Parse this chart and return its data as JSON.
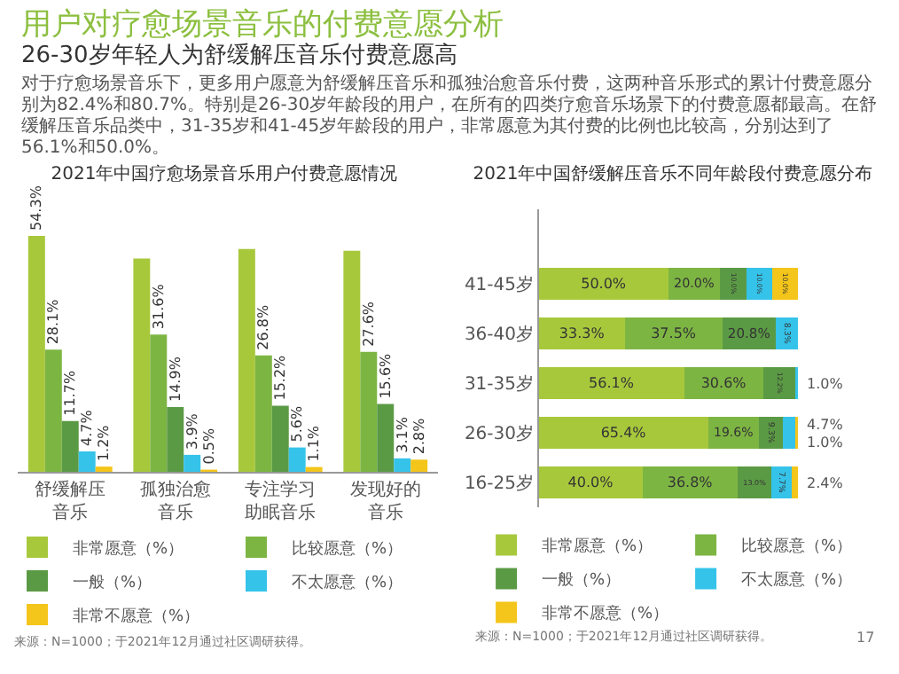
{
  "chart_data": [
    {
      "type": "bar",
      "title": "用户对疗愈场景音乐的付费意愿分析",
      "subtitle": "26-30岁年轻人为舒缓解压音乐付费意愿高",
      "annotations": [
        "对于疗愈场景音乐下，更多用户愿意为舒缓解压音乐和孤独治愈音乐付费，这两种音乐形式的累计付费意愿分别为82.4%和80.7%。特别是26-30岁年龄段的用户，在所有的四类疗愈音乐场景下的付费意愿都最高。在舒缓解压音乐品类中，31-35岁和41-45岁年龄段的用户，非常愿意为其付费的比例也比较高，分别达到了56.1%和50.0%。",
        "2021年中国疗愈场景音乐用户付费意愿情况",
        "来源：N=1000；于2021年12月通过社区调研获得。"
      ],
      "categories": [
        "舒缓解压音乐",
        "孤独治愈音乐",
        "专注学习助眠音乐",
        "发现好的音乐"
      ],
      "legend": "bottom",
      "series": [
        {
          "name": "非常愿意（%）",
          "color": "#a8c83c",
          "values": [
            54.3,
            49.1,
            51.3,
            50.9
          ],
          "value_labels": [
            "54.3%",
            null,
            null,
            null
          ]
        },
        {
          "name": "比较愿意（%）",
          "color": "#7db543",
          "values": [
            28.1,
            31.6,
            26.8,
            27.6
          ],
          "value_labels": [
            "28.1%",
            "31.6%",
            "26.8%",
            "27.6%"
          ]
        },
        {
          "name": "一般（%）",
          "color": "#5b9a45",
          "values": [
            11.7,
            14.9,
            15.2,
            15.6
          ],
          "value_labels": [
            "11.7%",
            "14.9%",
            "15.2%",
            "15.6%"
          ]
        },
        {
          "name": "不太愿意（%）",
          "color": "#35c3e9",
          "values": [
            4.7,
            3.9,
            5.6,
            3.1
          ],
          "value_labels": [
            "4.7%",
            "3.9%",
            "5.6%",
            "3.1%"
          ]
        },
        {
          "name": "非常不愿意（%）",
          "color": "#f4c51a",
          "values": [
            1.2,
            0.5,
            1.1,
            2.8
          ],
          "value_labels": [
            "1.2%",
            "0.5%",
            "1.1%",
            "2.8%"
          ]
        }
      ]
    },
    {
      "type": "bar",
      "title": "2021年中国舒缓解压音乐不同年龄段付费意愿分布",
      "orientation": "horizontal",
      "stacked": true,
      "legend": "bottom",
      "annotations": [
        "来源：N=1000；于2021年12月通过社区调研获得。",
        "17"
      ],
      "categories": [
        null,
        "41-45岁",
        "36-40岁",
        "31-35岁",
        "26-30岁",
        "16-25岁"
      ],
      "series": [
        {
          "name": "非常愿意（%）",
          "color": "#a8c83c",
          "values": [
            null,
            50.0,
            33.3,
            56.1,
            65.4,
            40.0
          ],
          "value_labels": [
            null,
            "50.0%",
            "33.3%",
            "56.1%",
            "65.4%",
            "40.0%"
          ]
        },
        {
          "name": "比较愿意（%）",
          "color": "#7db543",
          "values": [
            null,
            20.0,
            37.5,
            30.6,
            19.6,
            36.8
          ],
          "value_labels": [
            null,
            "20.0%",
            "37.5%",
            "30.6%",
            "19.6%",
            "36.8%"
          ]
        },
        {
          "name": "一般（%）",
          "color": "#5b9a45",
          "values": [
            null,
            10.0,
            20.8,
            12.2,
            9.3,
            13.0
          ],
          "value_labels": [
            null,
            "10.0%",
            "20.8%",
            "12.2%",
            "9.3%",
            "13.0%"
          ]
        },
        {
          "name": "不太愿意（%）",
          "color": "#35c3e9",
          "values": [
            null,
            10.0,
            8.3,
            1.0,
            4.7,
            7.7
          ],
          "value_labels": [
            null,
            "10.0%",
            "8.3%",
            "1.0%",
            "4.7%",
            "7.7%"
          ]
        },
        {
          "name": "非常不愿意（%）",
          "color": "#f4c51a",
          "values": [
            null,
            10.0,
            null,
            null,
            1.0,
            2.4
          ],
          "value_labels": [
            null,
            "10.0%",
            null,
            null,
            "1.0%",
            "2.4%"
          ]
        }
      ]
    }
  ]
}
